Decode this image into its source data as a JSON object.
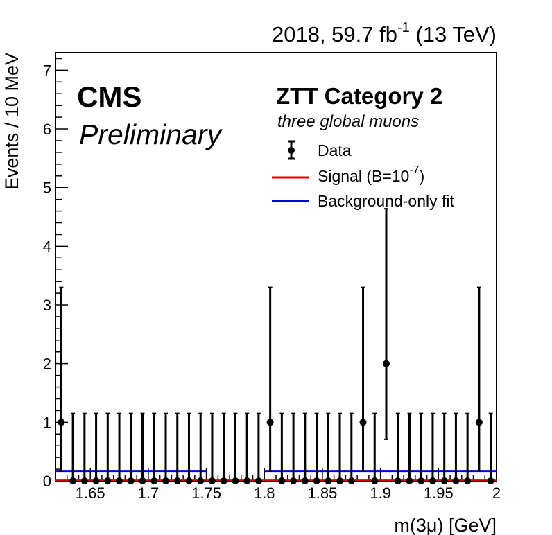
{
  "header": {
    "lumi_prefix": "2018, 59.7 fb",
    "lumi_sup": "-1",
    "lumi_suffix": " (13 TeV)"
  },
  "labels": {
    "cms": "CMS",
    "preliminary": "Preliminary",
    "category": "ZTT Category 2",
    "subcategory": "three global muons"
  },
  "legend": {
    "data": "Data",
    "signal_prefix": "Signal (B=10",
    "signal_sup": "-7",
    "signal_suffix": ")",
    "background": "Background-only fit"
  },
  "colors": {
    "data": "#000000",
    "signal": "#e00000",
    "background": "#0000e0"
  },
  "chart_data": {
    "type": "scatter",
    "xlabel": "m(3μ) [GeV]",
    "ylabel": "Events / 10 MeV",
    "xlim": [
      1.62,
      2.0
    ],
    "ylim": [
      0,
      7.3
    ],
    "x_ticks": [
      1.65,
      1.7,
      1.75,
      1.8,
      1.85,
      1.9,
      1.95,
      2.0
    ],
    "x_tick_labels": [
      "1.65",
      "1.7",
      "1.75",
      "1.8",
      "1.85",
      "1.9",
      "1.95",
      "2"
    ],
    "y_ticks": [
      0,
      1,
      2,
      3,
      4,
      5,
      6,
      7
    ],
    "y_tick_labels": [
      "0",
      "1",
      "2",
      "3",
      "4",
      "5",
      "6",
      "7"
    ],
    "data_x": [
      1.625,
      1.635,
      1.645,
      1.655,
      1.665,
      1.675,
      1.685,
      1.695,
      1.705,
      1.715,
      1.725,
      1.735,
      1.745,
      1.755,
      1.765,
      1.775,
      1.785,
      1.795,
      1.805,
      1.815,
      1.825,
      1.835,
      1.845,
      1.855,
      1.865,
      1.875,
      1.885,
      1.895,
      1.905,
      1.915,
      1.925,
      1.935,
      1.945,
      1.955,
      1.965,
      1.975,
      1.985,
      1.995
    ],
    "data_y": [
      1,
      0,
      0,
      0,
      0,
      0,
      0,
      0,
      0,
      0,
      0,
      0,
      0,
      0,
      0,
      0,
      0,
      0,
      1,
      0,
      0,
      0,
      0,
      0,
      0,
      0,
      1,
      0,
      2,
      0,
      0,
      0,
      0,
      0,
      0,
      0,
      1,
      0
    ],
    "data_err_low": [
      0.83,
      0,
      0,
      0,
      0,
      0,
      0,
      0,
      0,
      0,
      0,
      0,
      0,
      0,
      0,
      0,
      0,
      0,
      0.83,
      0,
      0,
      0,
      0,
      0,
      0,
      0,
      0.83,
      0,
      1.29,
      0,
      0,
      0,
      0,
      0,
      0,
      0,
      0.83,
      0
    ],
    "data_err_high": [
      2.3,
      1.15,
      1.15,
      1.15,
      1.15,
      1.15,
      1.15,
      1.15,
      1.15,
      1.15,
      1.15,
      1.15,
      1.15,
      1.15,
      1.15,
      1.15,
      1.15,
      1.15,
      2.3,
      1.15,
      1.15,
      1.15,
      1.15,
      1.15,
      1.15,
      1.15,
      2.3,
      1.15,
      2.64,
      1.15,
      1.15,
      1.15,
      1.15,
      1.15,
      1.15,
      1.15,
      2.3,
      1.15
    ],
    "background_fit": [
      {
        "x": [
          1.62,
          1.75
        ],
        "y": [
          0.17,
          0.17
        ]
      },
      {
        "x": [
          1.8,
          2.0
        ],
        "y": [
          0.17,
          0.17
        ]
      }
    ],
    "signal": {
      "x": [
        1.62,
        2.0
      ],
      "y": [
        0.005,
        0.005
      ]
    }
  }
}
